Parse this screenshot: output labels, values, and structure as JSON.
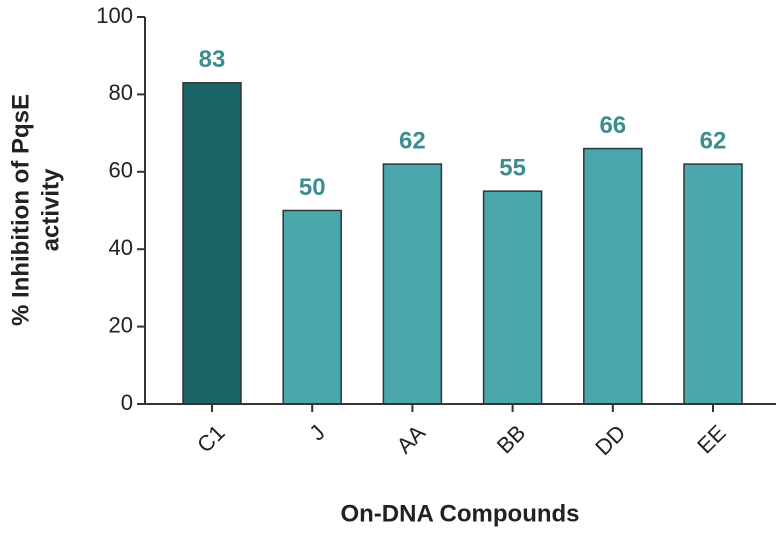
{
  "chart_data": {
    "type": "bar",
    "xlabel": "On-DNA Compounds",
    "ylabel": [
      "% Inhibition of PqsE",
      "activity"
    ],
    "categories": [
      "C1",
      "J",
      "AA",
      "BB",
      "DD",
      "EE"
    ],
    "values": [
      83,
      50,
      62,
      55,
      66,
      62
    ],
    "colors": [
      "#1b6465",
      "#4aa8ac",
      "#4aa8ac",
      "#4aa8ac",
      "#4aa8ac",
      "#4aa8ac"
    ],
    "label_color": "#3d8d90",
    "ylim": [
      0,
      100
    ],
    "yticks": [
      0,
      20,
      40,
      60,
      80,
      100
    ],
    "grid": false
  }
}
